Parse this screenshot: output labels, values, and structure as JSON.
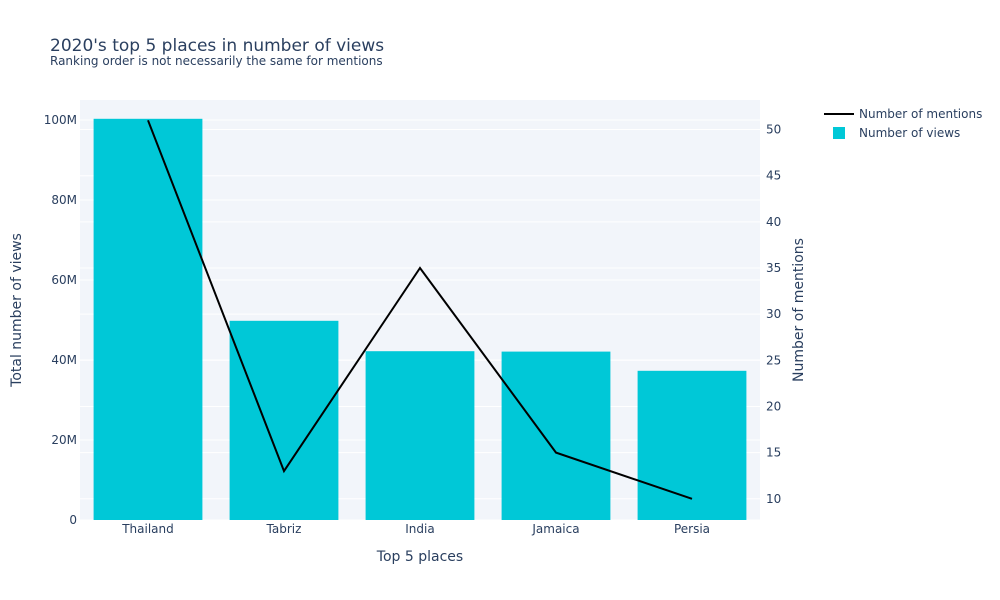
{
  "chart_data": {
    "type": "bar",
    "title": "2020's top 5 places in number of views",
    "subtitle": "Ranking order is not necessarily the same for mentions",
    "xlabel": "Top 5 places",
    "ylabel": "Total number of views",
    "y2label": "Number of mentions",
    "categories": [
      "Thailand",
      "Tabriz",
      "India",
      "Jamaica",
      "Persia"
    ],
    "ylim": [
      0,
      105000000
    ],
    "y_ticks": [
      0,
      20000000,
      40000000,
      60000000,
      80000000,
      100000000
    ],
    "y_tick_labels": [
      "0",
      "20M",
      "40M",
      "60M",
      "80M",
      "100M"
    ],
    "y2lim": [
      7.7,
      53.2
    ],
    "y2_ticks": [
      10,
      15,
      20,
      25,
      30,
      35,
      40,
      45,
      50
    ],
    "y2_tick_labels": [
      "10",
      "15",
      "20",
      "25",
      "30",
      "35",
      "40",
      "45",
      "50"
    ],
    "grid": true,
    "legend_position": "top-right",
    "series": [
      {
        "name": "Number of views",
        "type": "bar",
        "axis": "y",
        "color": "#00c8d7",
        "values": [
          100300000,
          49800000,
          42200000,
          42100000,
          37300000
        ]
      },
      {
        "name": "Number of mentions",
        "type": "line",
        "axis": "y2",
        "color": "#000000",
        "values": [
          51,
          13,
          35,
          15,
          10
        ]
      }
    ]
  }
}
